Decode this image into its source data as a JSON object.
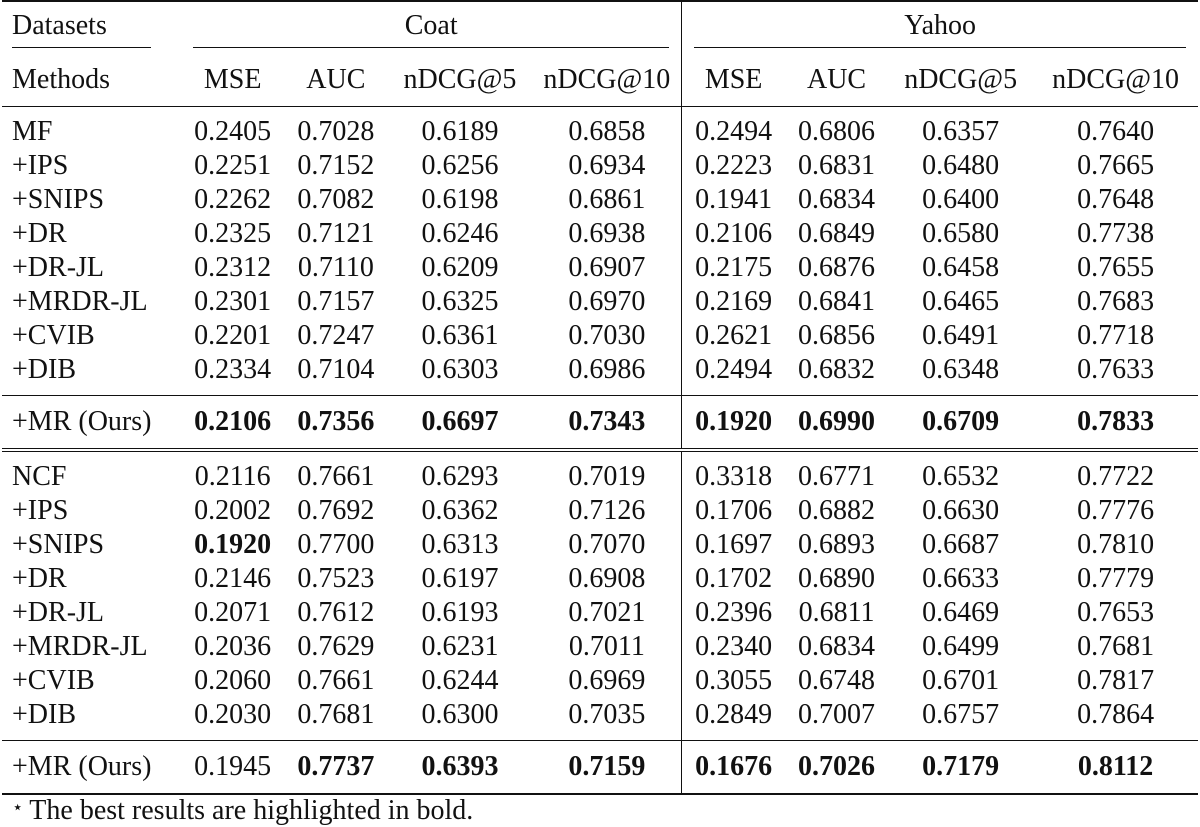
{
  "header": {
    "datasets_label": "Datasets",
    "methods_label": "Methods",
    "groups": [
      "Coat",
      "Yahoo"
    ],
    "metrics": [
      "MSE",
      "AUC",
      "nDCG@5",
      "nDCG@10",
      "MSE",
      "AUC",
      "nDCG@5",
      "nDCG@10"
    ]
  },
  "blocks": [
    {
      "rows": [
        {
          "method": "MF",
          "values": [
            "0.2405",
            "0.7028",
            "0.6189",
            "0.6858",
            "0.2494",
            "0.6806",
            "0.6357",
            "0.7640"
          ]
        },
        {
          "method": "+IPS",
          "values": [
            "0.2251",
            "0.7152",
            "0.6256",
            "0.6934",
            "0.2223",
            "0.6831",
            "0.6480",
            "0.7665"
          ]
        },
        {
          "method": "+SNIPS",
          "values": [
            "0.2262",
            "0.7082",
            "0.6198",
            "0.6861",
            "0.1941",
            "0.6834",
            "0.6400",
            "0.7648"
          ]
        },
        {
          "method": "+DR",
          "values": [
            "0.2325",
            "0.7121",
            "0.6246",
            "0.6938",
            "0.2106",
            "0.6849",
            "0.6580",
            "0.7738"
          ]
        },
        {
          "method": "+DR-JL",
          "values": [
            "0.2312",
            "0.7110",
            "0.6209",
            "0.6907",
            "0.2175",
            "0.6876",
            "0.6458",
            "0.7655"
          ]
        },
        {
          "method": "+MRDR-JL",
          "values": [
            "0.2301",
            "0.7157",
            "0.6325",
            "0.6970",
            "0.2169",
            "0.6841",
            "0.6465",
            "0.7683"
          ]
        },
        {
          "method": "+CVIB",
          "values": [
            "0.2201",
            "0.7247",
            "0.6361",
            "0.7030",
            "0.2621",
            "0.6856",
            "0.6491",
            "0.7718"
          ]
        },
        {
          "method": "+DIB",
          "values": [
            "0.2334",
            "0.7104",
            "0.6303",
            "0.6986",
            "0.2494",
            "0.6832",
            "0.6348",
            "0.7633"
          ]
        }
      ],
      "ours": {
        "method": "+MR (Ours)",
        "values": [
          "0.2106",
          "0.7356",
          "0.6697",
          "0.7343",
          "0.1920",
          "0.6990",
          "0.6709",
          "0.7833"
        ],
        "bold": [
          true,
          true,
          true,
          true,
          true,
          true,
          true,
          true
        ]
      }
    },
    {
      "rows": [
        {
          "method": "NCF",
          "values": [
            "0.2116",
            "0.7661",
            "0.6293",
            "0.7019",
            "0.3318",
            "0.6771",
            "0.6532",
            "0.7722"
          ]
        },
        {
          "method": "+IPS",
          "values": [
            "0.2002",
            "0.7692",
            "0.6362",
            "0.7126",
            "0.1706",
            "0.6882",
            "0.6630",
            "0.7776"
          ]
        },
        {
          "method": "+SNIPS",
          "values": [
            "0.1920",
            "0.7700",
            "0.6313",
            "0.7070",
            "0.1697",
            "0.6893",
            "0.6687",
            "0.7810"
          ],
          "bold": [
            true,
            false,
            false,
            false,
            false,
            false,
            false,
            false
          ]
        },
        {
          "method": "+DR",
          "values": [
            "0.2146",
            "0.7523",
            "0.6197",
            "0.6908",
            "0.1702",
            "0.6890",
            "0.6633",
            "0.7779"
          ]
        },
        {
          "method": "+DR-JL",
          "values": [
            "0.2071",
            "0.7612",
            "0.6193",
            "0.7021",
            "0.2396",
            "0.6811",
            "0.6469",
            "0.7653"
          ]
        },
        {
          "method": "+MRDR-JL",
          "values": [
            "0.2036",
            "0.7629",
            "0.6231",
            "0.7011",
            "0.2340",
            "0.6834",
            "0.6499",
            "0.7681"
          ]
        },
        {
          "method": "+CVIB",
          "values": [
            "0.2060",
            "0.7661",
            "0.6244",
            "0.6969",
            "0.3055",
            "0.6748",
            "0.6701",
            "0.7817"
          ]
        },
        {
          "method": "+DIB",
          "values": [
            "0.2030",
            "0.7681",
            "0.6300",
            "0.7035",
            "0.2849",
            "0.7007",
            "0.6757",
            "0.7864"
          ]
        }
      ],
      "ours": {
        "method": "+MR (Ours)",
        "values": [
          "0.1945",
          "0.7737",
          "0.6393",
          "0.7159",
          "0.1676",
          "0.7026",
          "0.7179",
          "0.8112"
        ],
        "bold": [
          false,
          true,
          true,
          true,
          true,
          true,
          true,
          true
        ]
      }
    }
  ],
  "footnote": {
    "marker": "⋆",
    "text": "The best results are highlighted in bold."
  }
}
